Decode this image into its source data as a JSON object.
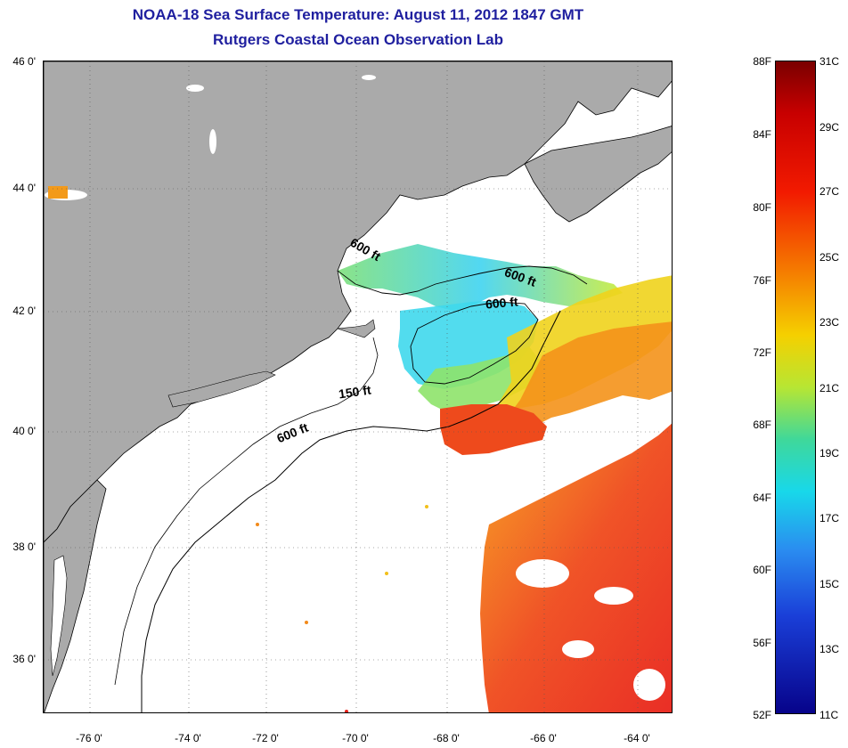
{
  "title": "NOAA-18 Sea Surface Temperature:  August 11, 2012 1847 GMT",
  "subtitle": "Rutgers Coastal Ocean Observation Lab",
  "colors": {
    "title": "#1f1f9f",
    "land": "#aaaaaa",
    "cloud_ocean": "#ffffff"
  },
  "latitude_labels": [
    "46 0'",
    "44 0'",
    "42 0'",
    "40 0'",
    "38 0'",
    "36 0'"
  ],
  "longitude_labels": [
    "-76 0'",
    "-74 0'",
    "-72 0'",
    "-70 0'",
    "-68 0'",
    "-66 0'",
    "-64 0'"
  ],
  "contour_labels": [
    "600 ft",
    "600 ft",
    "600 ft",
    "150 ft",
    "600 ft"
  ],
  "colorbar": {
    "fahrenheit_labels": [
      "88F",
      "84F",
      "80F",
      "76F",
      "72F",
      "68F",
      "64F",
      "60F",
      "56F",
      "52F"
    ],
    "celsius_labels": [
      "31C",
      "29C",
      "27C",
      "25C",
      "23C",
      "21C",
      "19C",
      "17C",
      "15C",
      "13C",
      "11C"
    ]
  }
}
